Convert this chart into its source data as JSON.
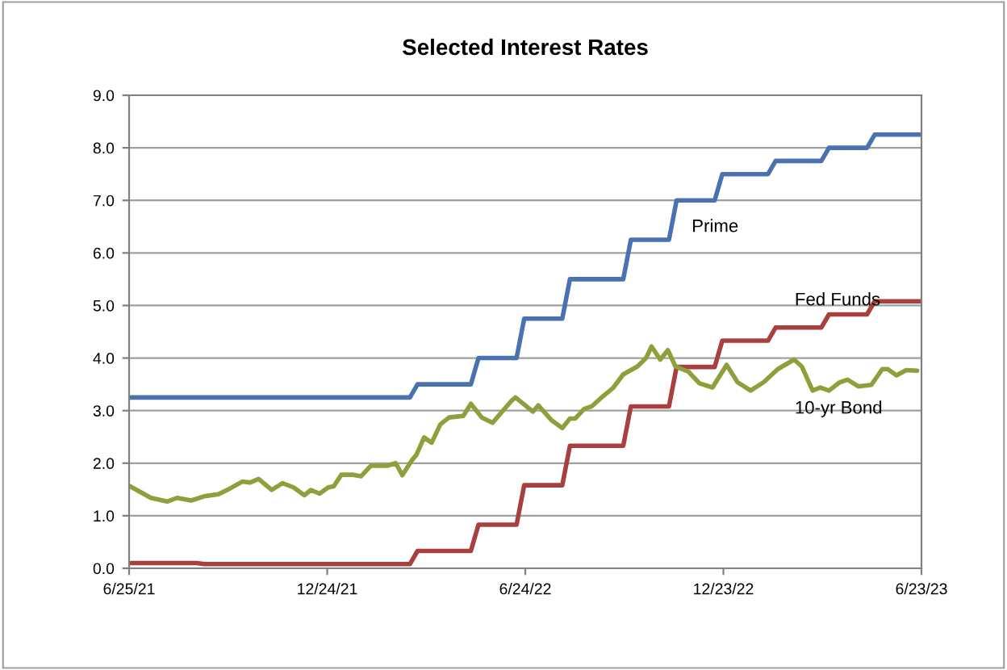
{
  "chart_data": {
    "type": "line",
    "title": "Selected Interest Rates",
    "xlim": [
      "2021-06-25",
      "2023-06-23"
    ],
    "xticks": [
      {
        "value": "2021-06-25",
        "label": "6/25/21"
      },
      {
        "value": "2021-12-24",
        "label": "12/24/21"
      },
      {
        "value": "2022-06-24",
        "label": "6/24/22"
      },
      {
        "value": "2022-12-23",
        "label": "12/23/22"
      },
      {
        "value": "2023-06-23",
        "label": "6/23/23"
      }
    ],
    "ylim": [
      0,
      9
    ],
    "yticks": [
      {
        "value": 0,
        "label": "0.0"
      },
      {
        "value": 1,
        "label": "1.0"
      },
      {
        "value": 2,
        "label": "2.0"
      },
      {
        "value": 3,
        "label": "3.0"
      },
      {
        "value": 4,
        "label": "4.0"
      },
      {
        "value": 5,
        "label": "5.0"
      },
      {
        "value": 6,
        "label": "6.0"
      },
      {
        "value": 7,
        "label": "7.0"
      },
      {
        "value": 8,
        "label": "8.0"
      },
      {
        "value": 9,
        "label": "9.0"
      }
    ],
    "grid": "y",
    "legend": false,
    "marker": "none",
    "line_style": "solid",
    "series": [
      {
        "name": "Prime",
        "color": "#4a72b0",
        "x": [
          "2021-06-25",
          "2022-03-10",
          "2022-03-17",
          "2022-05-05",
          "2022-05-12",
          "2022-06-16",
          "2022-06-23",
          "2022-07-28",
          "2022-08-04",
          "2022-09-22",
          "2022-09-29",
          "2022-11-03",
          "2022-11-10",
          "2022-12-15",
          "2022-12-22",
          "2023-02-02",
          "2023-02-09",
          "2023-03-23",
          "2023-03-30",
          "2023-05-04",
          "2023-05-11",
          "2023-06-23"
        ],
        "values": [
          3.25,
          3.25,
          3.5,
          3.5,
          4.0,
          4.0,
          4.75,
          4.75,
          5.5,
          5.5,
          6.25,
          6.25,
          7.0,
          7.0,
          7.5,
          7.5,
          7.75,
          7.75,
          8.0,
          8.0,
          8.25,
          8.25
        ]
      },
      {
        "name": "Fed Funds",
        "color": "#a8403f",
        "x": [
          "2021-06-25",
          "2021-08-26",
          "2021-09-02",
          "2022-03-10",
          "2022-03-17",
          "2022-05-05",
          "2022-05-12",
          "2022-06-16",
          "2022-06-23",
          "2022-07-28",
          "2022-08-04",
          "2022-09-22",
          "2022-09-29",
          "2022-11-03",
          "2022-11-10",
          "2022-12-15",
          "2022-12-22",
          "2023-02-02",
          "2023-02-09",
          "2023-03-23",
          "2023-03-30",
          "2023-05-04",
          "2023-05-11",
          "2023-06-23"
        ],
        "values": [
          0.1,
          0.1,
          0.08,
          0.08,
          0.33,
          0.33,
          0.83,
          0.83,
          1.58,
          1.58,
          2.33,
          2.33,
          3.08,
          3.08,
          3.83,
          3.83,
          4.33,
          4.33,
          4.58,
          4.58,
          4.83,
          4.83,
          5.08,
          5.08
        ]
      },
      {
        "name": "10-yr Bond",
        "color": "#8ea03c",
        "x": [
          "2021-06-25",
          "2021-07-15",
          "2021-07-30",
          "2021-08-08",
          "2021-08-21",
          "2021-09-02",
          "2021-09-15",
          "2021-09-25",
          "2021-10-07",
          "2021-10-14",
          "2021-10-22",
          "2021-11-03",
          "2021-11-13",
          "2021-11-23",
          "2021-12-03",
          "2021-12-09",
          "2021-12-17",
          "2021-12-25",
          "2021-12-30",
          "2022-01-06",
          "2022-01-16",
          "2022-01-24",
          "2022-02-02",
          "2022-02-17",
          "2022-02-25",
          "2022-03-03",
          "2022-03-12",
          "2022-03-16",
          "2022-03-23",
          "2022-03-30",
          "2022-04-07",
          "2022-04-15",
          "2022-04-28",
          "2022-05-05",
          "2022-05-15",
          "2022-05-25",
          "2022-06-11",
          "2022-06-15",
          "2022-07-01",
          "2022-07-06",
          "2022-07-18",
          "2022-07-28",
          "2022-08-04",
          "2022-08-09",
          "2022-08-17",
          "2022-08-24",
          "2022-09-01",
          "2022-09-13",
          "2022-09-22",
          "2022-10-05",
          "2022-10-13",
          "2022-10-18",
          "2022-10-26",
          "2022-11-02",
          "2022-11-09",
          "2022-11-21",
          "2022-12-01",
          "2022-12-13",
          "2022-12-26",
          "2023-01-05",
          "2023-01-17",
          "2023-01-29",
          "2023-02-11",
          "2023-02-26",
          "2023-03-05",
          "2023-03-15",
          "2023-03-22",
          "2023-03-30",
          "2023-04-09",
          "2023-04-16",
          "2023-04-26",
          "2023-05-08",
          "2023-05-18",
          "2023-05-23",
          "2023-05-31",
          "2023-06-09",
          "2023-06-19"
        ],
        "values": [
          1.57,
          1.34,
          1.27,
          1.34,
          1.29,
          1.37,
          1.41,
          1.51,
          1.65,
          1.63,
          1.7,
          1.49,
          1.62,
          1.54,
          1.39,
          1.49,
          1.42,
          1.54,
          1.56,
          1.78,
          1.78,
          1.75,
          1.95,
          1.95,
          2.0,
          1.77,
          2.06,
          2.16,
          2.49,
          2.39,
          2.74,
          2.87,
          2.9,
          3.13,
          2.87,
          2.77,
          3.18,
          3.25,
          2.98,
          3.1,
          2.82,
          2.67,
          2.85,
          2.85,
          3.03,
          3.08,
          3.23,
          3.44,
          3.69,
          3.84,
          4.0,
          4.22,
          3.97,
          4.15,
          3.84,
          3.74,
          3.52,
          3.44,
          3.87,
          3.54,
          3.38,
          3.54,
          3.79,
          3.97,
          3.84,
          3.38,
          3.44,
          3.38,
          3.54,
          3.59,
          3.46,
          3.49,
          3.79,
          3.79,
          3.67,
          3.77,
          3.76
        ]
      }
    ]
  }
}
